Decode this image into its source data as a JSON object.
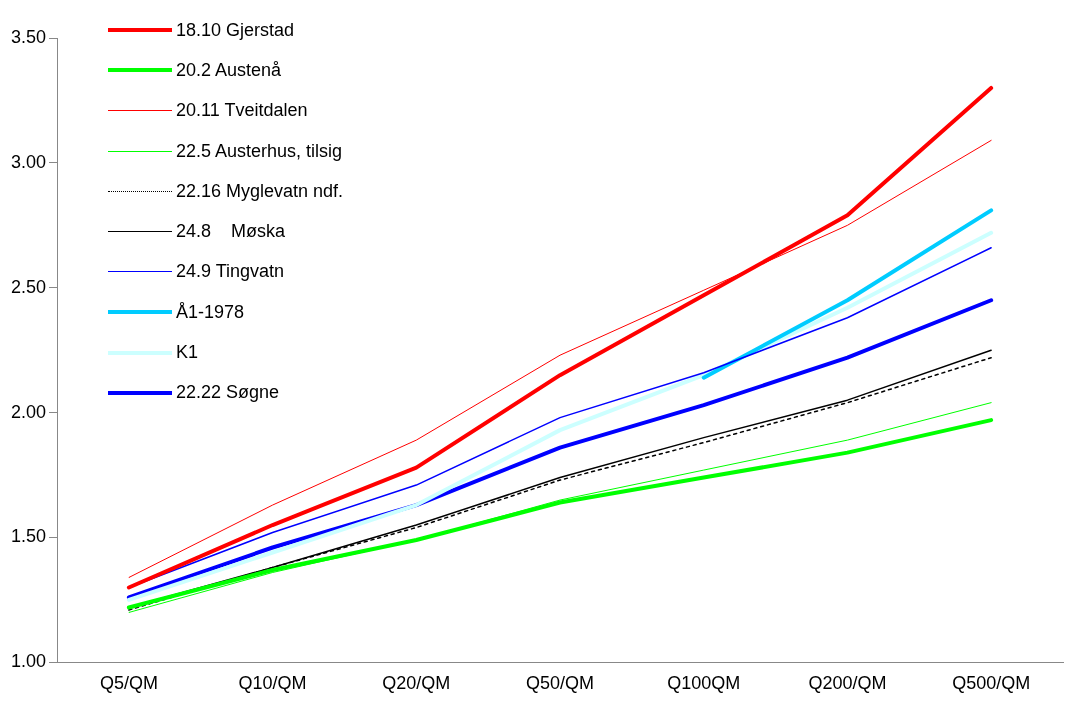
{
  "chart_data": {
    "type": "line",
    "categories": [
      "Q5/QM",
      "Q10/QM",
      "Q20/QM",
      "Q50/QM",
      "Q100QM",
      "Q200/QM",
      "Q500/QM"
    ],
    "series": [
      {
        "name": "18.10 Gjerstad",
        "color": "#ff0000",
        "values": [
          1.3,
          1.55,
          1.78,
          2.15,
          2.47,
          2.79,
          3.3
        ]
      },
      {
        "name": "20.2 Austenå",
        "color": "#00ff00",
        "values": [
          1.22,
          1.37,
          1.49,
          1.64,
          1.74,
          1.84,
          1.97
        ]
      },
      {
        "name": "20.11 Tveitdalen",
        "color": "#ff0000",
        "values": [
          1.34,
          1.63,
          1.89,
          2.23,
          2.49,
          2.75,
          3.09
        ]
      },
      {
        "name": "22.5 Austerhus, tilsig",
        "color": "#00ff00",
        "values": [
          1.2,
          1.36,
          1.49,
          1.65,
          1.77,
          1.89,
          2.04
        ]
      },
      {
        "name": "22.16 Myglevatn ndf.",
        "color": "#000000",
        "line_style": "dotted",
        "values": [
          1.21,
          1.38,
          1.54,
          1.73,
          1.88,
          2.04,
          2.22
        ]
      },
      {
        "name": "24.8    Møska",
        "color": "#000000",
        "values": [
          1.22,
          1.38,
          1.55,
          1.74,
          1.9,
          2.05,
          2.25
        ]
      },
      {
        "name": "24.9 Tingvatn",
        "color": "#0000ff",
        "values": [
          1.3,
          1.52,
          1.71,
          1.98,
          2.16,
          2.38,
          2.66
        ]
      },
      {
        "name": "Å1-1978",
        "color": "#00ccff",
        "values": [
          null,
          null,
          null,
          null,
          2.14,
          2.45,
          2.81
        ]
      },
      {
        "name": "K1",
        "color": "#ccffff",
        "values": [
          1.25,
          1.44,
          1.63,
          1.93,
          2.15,
          2.42,
          2.72
        ]
      },
      {
        "name": "22.22 Søgne",
        "color": "#0000ff",
        "values": [
          1.26,
          1.46,
          1.63,
          1.86,
          2.03,
          2.22,
          2.45
        ]
      }
    ],
    "ylim": [
      1,
      3.5
    ],
    "yticks": [
      {
        "value": 1,
        "label": "1.00"
      },
      {
        "value": 1.5,
        "label": "1.50"
      },
      {
        "value": 2,
        "label": "2.00"
      },
      {
        "value": 2.5,
        "label": "2.50"
      },
      {
        "value": 3,
        "label": "3.00"
      },
      {
        "value": 3.5,
        "label": "3.50"
      }
    ],
    "grid": false,
    "legend": "top left",
    "marker": "none"
  }
}
